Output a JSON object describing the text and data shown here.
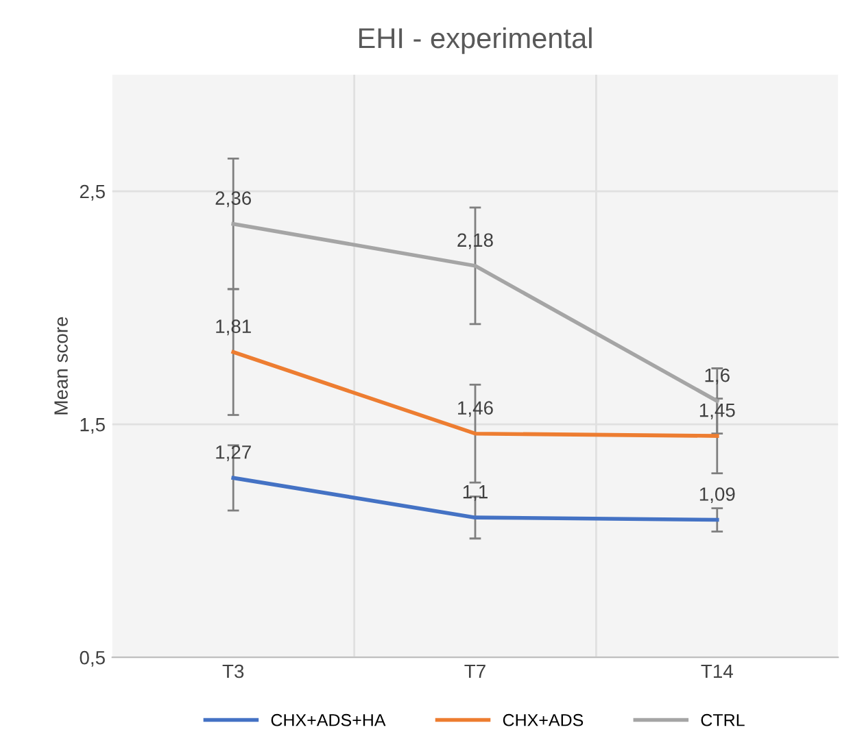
{
  "chart_data": {
    "type": "line",
    "title": "EHI - experimental",
    "ylabel": "Mean score",
    "categories": [
      "T3",
      "T7",
      "T14"
    ],
    "series": [
      {
        "name": "CHX+ADS+HA",
        "color": "#4472c4",
        "values": [
          1.27,
          1.1,
          1.09
        ],
        "value_labels": [
          "1,27",
          "1,1",
          "1,09"
        ],
        "errors": [
          0.14,
          0.09,
          0.05
        ]
      },
      {
        "name": "CHX+ADS",
        "color": "#ed7d31",
        "values": [
          1.81,
          1.46,
          1.45
        ],
        "value_labels": [
          "1,81",
          "1,46",
          "1,45"
        ],
        "errors": [
          0.27,
          0.21,
          0.16
        ]
      },
      {
        "name": "CTRL",
        "color": "#a5a5a5",
        "values": [
          2.36,
          2.18,
          1.6
        ],
        "value_labels": [
          "2,36",
          "2,18",
          "1,6"
        ],
        "errors": [
          0.28,
          0.25,
          0.14
        ]
      }
    ],
    "ylim": [
      0.5,
      3.0
    ],
    "yticks": [
      {
        "value": 0.5,
        "label": "0,5"
      },
      {
        "value": 1.5,
        "label": "1,5"
      },
      {
        "value": 2.5,
        "label": "2,5"
      }
    ],
    "grid": true,
    "legend": "bottom",
    "marker": "none",
    "line_style": "solid"
  }
}
